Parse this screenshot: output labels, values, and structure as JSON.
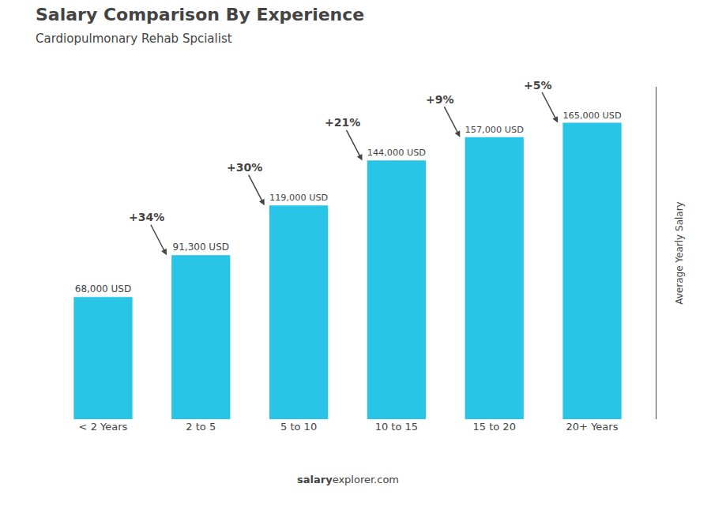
{
  "chart_data": {
    "type": "bar",
    "title": "Salary Comparison By Experience",
    "subtitle": "Cardiopulmonary Rehab Spcialist",
    "ylabel": "Average Yearly Salary",
    "categories": [
      "< 2 Years",
      "2 to 5",
      "5 to 10",
      "10 to 15",
      "15 to 20",
      "20+ Years"
    ],
    "values": [
      68000,
      91300,
      119000,
      144000,
      157000,
      165000
    ],
    "value_labels": [
      "68,000 USD",
      "91,300 USD",
      "119,000 USD",
      "144,000 USD",
      "157,000 USD",
      "165,000 USD"
    ],
    "data_labels": true,
    "annotations": [
      "+34%",
      "+30%",
      "+21%",
      "+9%",
      "+5%"
    ],
    "footer": [
      "salary",
      "explorer.com"
    ],
    "color": "#29c5e6",
    "ylim": [
      0,
      185000
    ],
    "tick_labels": "x",
    "grid": false
  }
}
